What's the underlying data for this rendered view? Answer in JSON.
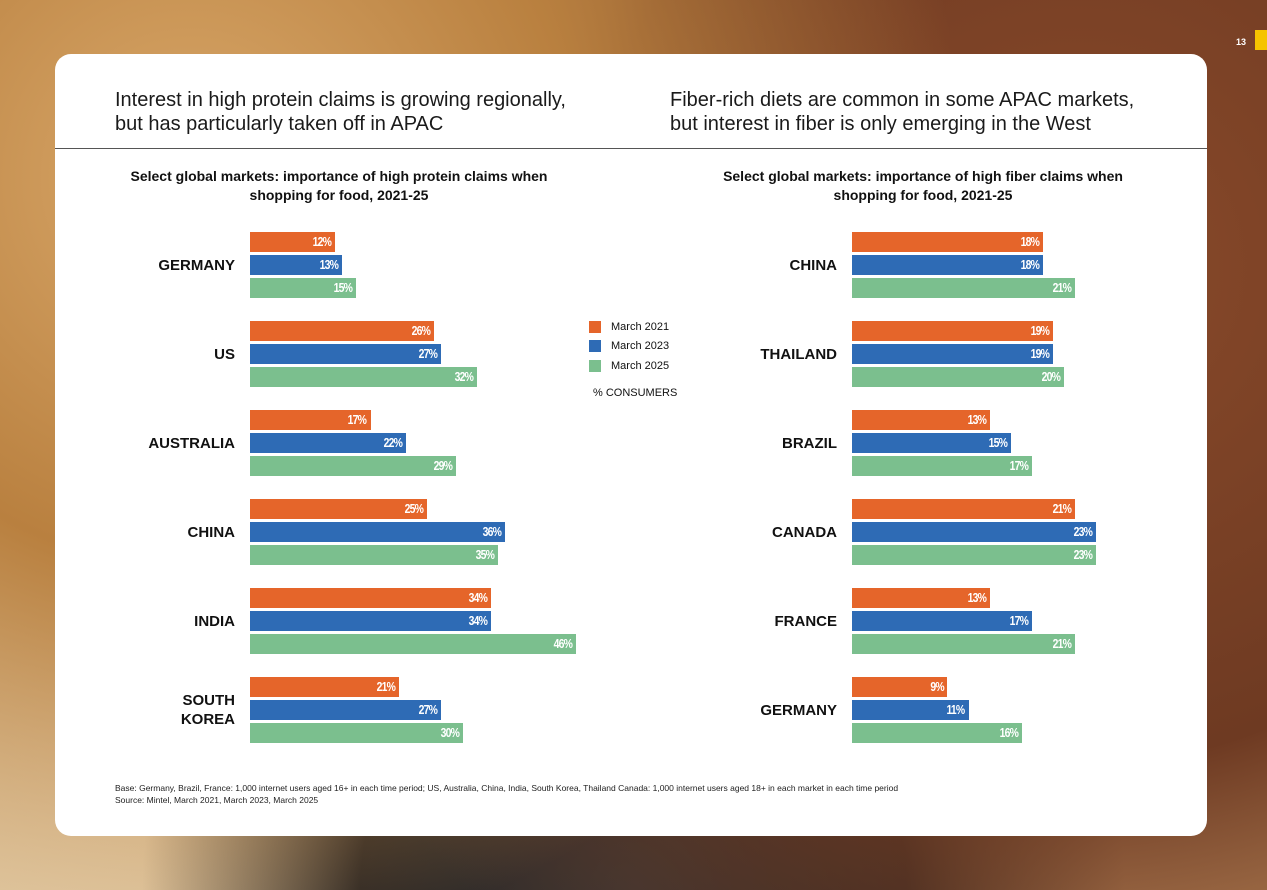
{
  "page_number": "13",
  "headings": {
    "left": "Interest in high protein claims is growing regionally,\nbut has particularly taken off in APAC",
    "right": "Fiber-rich diets are common in some APAC markets,\nbut interest in fiber is only emerging in the West"
  },
  "legend": {
    "items": [
      "March 2021",
      "March 2023",
      "March 2025"
    ],
    "unit": "% CONSUMERS"
  },
  "colors": {
    "March 2021": "#e5652a",
    "March 2023": "#2e6bb5",
    "March 2025": "#7bbf8e"
  },
  "chart_data": [
    {
      "type": "bar",
      "orientation": "horizontal",
      "title": "Select global markets: importance of high protein claims when shopping for food, 2021-25",
      "categories": [
        "GERMANY",
        "US",
        "AUSTRALIA",
        "CHINA",
        "INDIA",
        "SOUTH KOREA"
      ],
      "series": [
        {
          "name": "March 2021",
          "values": [
            12,
            26,
            17,
            25,
            34,
            21
          ]
        },
        {
          "name": "March 2023",
          "values": [
            13,
            27,
            22,
            36,
            34,
            27
          ]
        },
        {
          "name": "March 2025",
          "values": [
            15,
            32,
            29,
            35,
            46,
            30
          ]
        }
      ],
      "unit": "%"
    },
    {
      "type": "bar",
      "orientation": "horizontal",
      "title": "Select global markets: importance of high fiber claims when shopping for food, 2021-25",
      "categories": [
        "CHINA",
        "THAILAND",
        "BRAZIL",
        "CANADA",
        "FRANCE",
        "GERMANY"
      ],
      "series": [
        {
          "name": "March 2021",
          "values": [
            18,
            19,
            13,
            21,
            13,
            9
          ]
        },
        {
          "name": "March 2023",
          "values": [
            18,
            19,
            15,
            23,
            17,
            11
          ]
        },
        {
          "name": "March 2025",
          "values": [
            21,
            20,
            17,
            23,
            21,
            16
          ]
        }
      ],
      "unit": "%"
    }
  ],
  "footnotes": {
    "base": "Base: Germany, Brazil, France: 1,000 internet users aged 16+ in each time period; US, Australia, China, India, South Korea, Thailand Canada: 1,000 internet users aged 18+ in each market in each time period",
    "source": "Source: Mintel, March 2021, March 2023, March 2025"
  }
}
